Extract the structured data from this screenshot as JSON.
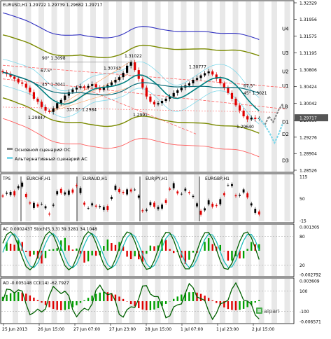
{
  "chart": {
    "header": "EURUSD,H1  1.29722 1.29739 1.29682 1.29717",
    "broker": "alpari",
    "legend": [
      {
        "label": "Основной сценарий ОС",
        "color": "#888888"
      },
      {
        "label": "Альтернативный сценарий АС",
        "color": "#7fd8ea"
      }
    ],
    "colors": {
      "bull": "#000000",
      "bear": "#e00000",
      "ma_fast": "#008080",
      "ma_slow": "#7a8a00",
      "band": "#7fd8ea",
      "channel": "#ff6060",
      "env_top": "#3030c0",
      "bands_shade": "#e8e8e8",
      "current": "#555555"
    }
  },
  "tps": {
    "label": "TPS",
    "pairs": [
      "EURCHF,H1",
      "EURAUD,H1",
      "EURJPY,H1",
      "EURGBP,H1"
    ],
    "ticks": [
      "115",
      "50",
      "-15"
    ]
  },
  "ac": {
    "header": "AC 0.0002437  Stoch(5,3,3) 39.3281 34.1048",
    "ticks": [
      "0.001305",
      "80",
      "20",
      "-0.002792"
    ]
  },
  "ao": {
    "header": "AO -0.005148  CCI(14) -62.7927",
    "ticks": [
      "0.003609",
      "100",
      "-100",
      "-0.006571"
    ]
  },
  "chart_data": {
    "type": "candlestick",
    "symbol": "EURUSD",
    "timeframe": "H1",
    "last_price": "1.29717",
    "price_axis_ticks": [
      "1.32329",
      "1.31956",
      "1.31575",
      "1.31195",
      "1.30806",
      "1.30424",
      "1.30042",
      "1.29660",
      "1.29276",
      "1.28904",
      "1.28526"
    ],
    "price_axis_values": [
      1.32329,
      1.31956,
      1.31575,
      1.31195,
      1.30806,
      1.30424,
      1.30042,
      1.2966,
      1.29276,
      1.28904,
      1.28526
    ],
    "time_labels": [
      "25 Jun 2013",
      "26 Jun 15:00",
      "27 Jun 07:00",
      "27 Jun 23:00",
      "28 Jun 15:00",
      "1 Jul 07:00",
      "1 Jul 23:00",
      "2 Jul 15:00"
    ],
    "level_labels": [
      "U4",
      "U3",
      "U2",
      "U1",
      "LB",
      "D1",
      "D2",
      "D3"
    ],
    "level_values": [
      1.3175,
      1.312,
      1.3078,
      1.3045,
      1.2998,
      1.2963,
      1.2935,
      1.2876
    ],
    "annotations": [
      {
        "text": "1.31022",
        "price": 1.31022
      },
      {
        "text": "1.30777",
        "price": 1.30777
      },
      {
        "text": "1.30743",
        "price": 1.30743
      },
      {
        "text": "90° 1.3098",
        "price": 1.3098
      },
      {
        "text": "67.5°",
        "price": 1.3072
      },
      {
        "text": "45° 1.3041",
        "price": 1.3041
      },
      {
        "text": "337.5° 1.2984",
        "price": 1.2984
      },
      {
        "text": "1.29847",
        "price": 1.29847
      },
      {
        "text": "1.2991",
        "price": 1.2991
      },
      {
        "text": "67.5°",
        "price": 1.3038
      },
      {
        "text": "45° 1.3021",
        "price": 1.3021
      },
      {
        "text": "1.29640",
        "price": 1.2964
      }
    ],
    "close_series": [
      1.3075,
      1.3071,
      1.3065,
      1.306,
      1.3052,
      1.3049,
      1.304,
      1.303,
      1.3015,
      1.3008,
      1.2996,
      1.2988,
      1.2985,
      1.2993,
      1.3005,
      1.3012,
      1.3022,
      1.303,
      1.3036,
      1.304,
      1.3043,
      1.304,
      1.3044,
      1.3048,
      1.3041,
      1.3035,
      1.304,
      1.3046,
      1.3052,
      1.3058,
      1.3064,
      1.3074,
      1.309,
      1.3098,
      1.308,
      1.306,
      1.304,
      1.302,
      1.3008,
      1.3002,
      1.3005,
      1.301,
      1.3015,
      1.302,
      1.3028,
      1.3034,
      1.304,
      1.3045,
      1.305,
      1.3058,
      1.3062,
      1.3068,
      1.3073,
      1.3077,
      1.307,
      1.306,
      1.305,
      1.304,
      1.3028,
      1.3015,
      1.3,
      1.2988,
      1.2975,
      1.2968,
      1.2972,
      1.2969,
      1.2971
    ]
  }
}
